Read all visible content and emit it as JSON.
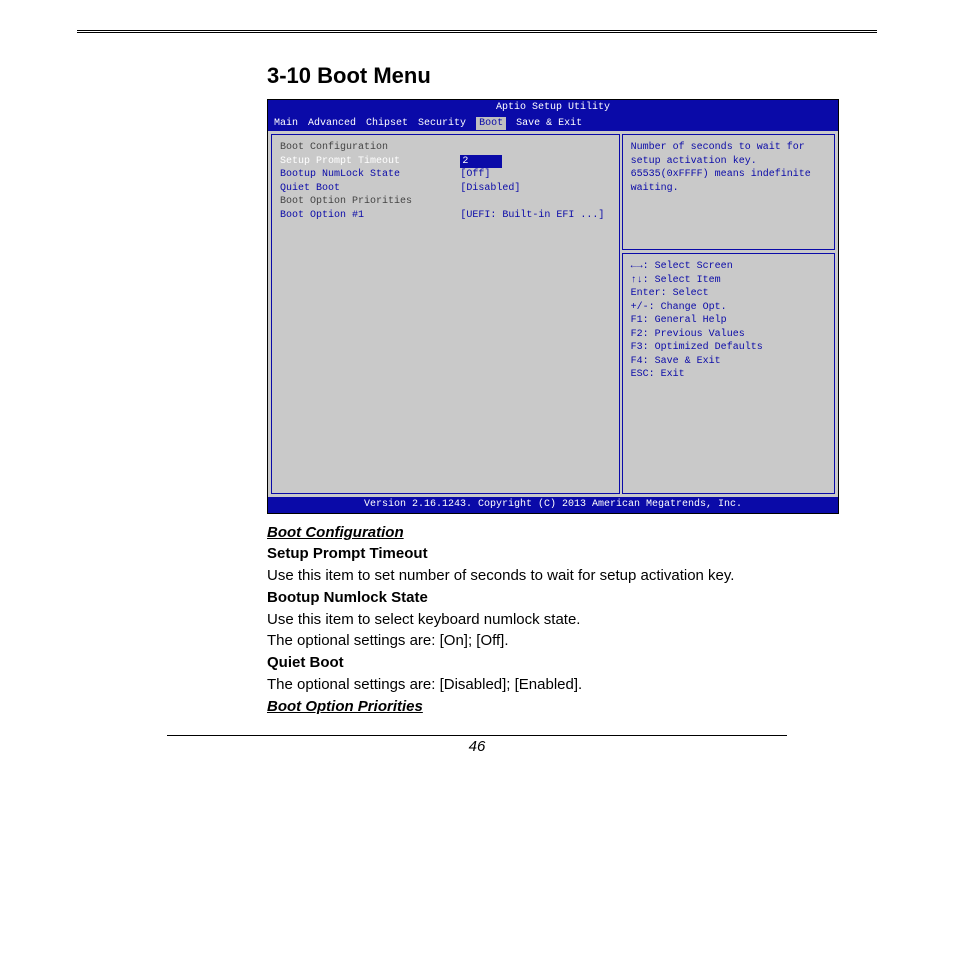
{
  "page": {
    "title": "3-10 Boot Menu",
    "pageNumber": "46"
  },
  "bios": {
    "title": "Aptio Setup Utility",
    "menu": [
      "Main",
      "Advanced",
      "Chipset",
      "Security",
      "Boot",
      "Save & Exit"
    ],
    "selectedMenu": "Boot",
    "left": {
      "header": "Boot Configuration",
      "rows": [
        {
          "label": "Setup Prompt Timeout",
          "value": "2",
          "selected": true
        },
        {
          "label": "Bootup NumLock State",
          "value": "[Off]"
        },
        {
          "label": "",
          "value": ""
        },
        {
          "label": "Quiet Boot",
          "value": "[Disabled]"
        },
        {
          "label": "",
          "value": ""
        },
        {
          "label": "",
          "value": ""
        },
        {
          "label": "Boot Option Priorities",
          "value": "",
          "static": true
        },
        {
          "label": "Boot Option #1",
          "value": "[UEFI: Built-in EFI ...]"
        }
      ]
    },
    "help": [
      "Number of seconds to wait for",
      "setup activation key.",
      "65535(0xFFFF) means indefinite",
      "waiting."
    ],
    "keys": [
      "←→: Select Screen",
      "↑↓: Select Item",
      "Enter: Select",
      "+/-: Change Opt.",
      "F1: General Help",
      "F2: Previous Values",
      "F3: Optimized Defaults",
      "F4: Save & Exit",
      "ESC: Exit"
    ],
    "footer": "Version 2.16.1243. Copyright (C) 2013 American Megatrends, Inc."
  },
  "doc": {
    "sections": [
      {
        "type": "head",
        "text": "Boot Configuration"
      },
      {
        "type": "bold",
        "text": "Setup Prompt Timeout"
      },
      {
        "type": "p",
        "text": "Use this item to set number of seconds to wait for setup activation key."
      },
      {
        "type": "bold",
        "text": "Bootup Numlock State"
      },
      {
        "type": "p",
        "text": "Use this item to select keyboard numlock state."
      },
      {
        "type": "p",
        "text": "The optional settings are: [On]; [Off]."
      },
      {
        "type": "bold",
        "text": "Quiet Boot"
      },
      {
        "type": "p",
        "text": "The optional settings are: [Disabled]; [Enabled]."
      },
      {
        "type": "head",
        "text": "Boot Option Priorities"
      }
    ]
  }
}
